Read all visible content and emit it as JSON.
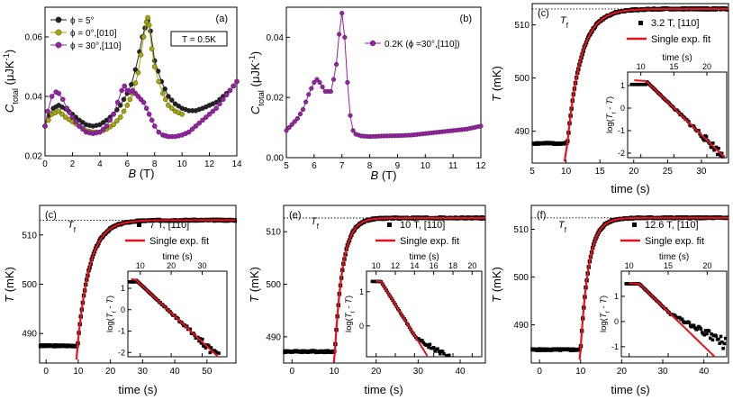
{
  "chart_data": [
    {
      "panel": "(a)",
      "type": "line",
      "xlabel": "B (T)",
      "ylabel": "C_total (μJK⁻¹)",
      "xlim": [
        0,
        14
      ],
      "ylim": [
        0.02,
        0.07
      ],
      "xticks": [
        0,
        2,
        4,
        6,
        8,
        10,
        12,
        14
      ],
      "yticks": [
        0.02,
        0.04,
        0.06
      ],
      "ytick_labels": [
        "0.02",
        "0.04",
        "0.06"
      ],
      "annotation": "T = 0.5K",
      "legend_position": "top-left",
      "series": [
        {
          "name": "ϕ = 5°",
          "color": "#222222",
          "x": [
            0.0,
            0.3,
            0.6,
            1.0,
            1.5,
            2.0,
            2.5,
            3.0,
            3.5,
            4.0,
            4.5,
            5.0,
            5.5,
            6.0,
            6.3,
            6.6,
            6.9,
            7.1,
            7.3,
            7.5,
            7.7,
            8.0,
            8.5,
            9.0,
            9.5,
            10.0,
            10.5,
            11.0,
            11.5,
            12.0,
            12.5,
            13.0,
            13.5,
            14.0
          ],
          "y": [
            0.03,
            0.0335,
            0.036,
            0.037,
            0.0358,
            0.034,
            0.032,
            0.0305,
            0.03,
            0.0305,
            0.032,
            0.034,
            0.037,
            0.041,
            0.044,
            0.049,
            0.055,
            0.06,
            0.063,
            0.0655,
            0.062,
            0.052,
            0.045,
            0.04,
            0.0375,
            0.036,
            0.0352,
            0.0352,
            0.036,
            0.037,
            0.038,
            0.04,
            0.042,
            0.045
          ]
        },
        {
          "name": "ϕ = 0°,[010]",
          "color": "#a8a800",
          "x": [
            0.0,
            0.5,
            1.0,
            1.5,
            2.0,
            2.5,
            3.0,
            3.5,
            4.0,
            4.5,
            5.0,
            5.5,
            6.0,
            6.4,
            6.8,
            7.0,
            7.2,
            7.4,
            7.5,
            7.6,
            7.8,
            8.0,
            8.3,
            8.6,
            9.0,
            9.5,
            10.0
          ],
          "y": [
            0.03,
            0.034,
            0.035,
            0.033,
            0.0315,
            0.03,
            0.0285,
            0.028,
            0.028,
            0.029,
            0.0305,
            0.033,
            0.037,
            0.041,
            0.048,
            0.054,
            0.06,
            0.065,
            0.0665,
            0.064,
            0.056,
            0.05,
            0.045,
            0.041,
            0.037,
            0.035,
            0.034
          ]
        },
        {
          "name": "ϕ = 30°,[110]",
          "color": "#9b1fa8",
          "x": [
            0.0,
            0.2,
            0.5,
            0.8,
            1.0,
            1.3,
            1.6,
            2.0,
            2.5,
            3.0,
            3.5,
            4.0,
            4.5,
            5.0,
            5.3,
            5.6,
            5.8,
            6.0,
            6.2,
            6.4,
            6.6,
            6.8,
            7.0,
            7.2,
            7.4,
            7.6,
            7.8,
            8.0,
            8.3,
            8.6,
            9.0,
            9.5,
            10.0,
            10.5,
            11.0,
            11.5,
            12.0,
            12.5,
            13.0,
            13.5,
            14.0
          ],
          "y": [
            0.03,
            0.035,
            0.04,
            0.0415,
            0.041,
            0.039,
            0.036,
            0.033,
            0.03,
            0.028,
            0.0275,
            0.028,
            0.03,
            0.034,
            0.038,
            0.042,
            0.0435,
            0.042,
            0.0415,
            0.042,
            0.041,
            0.04,
            0.039,
            0.038,
            0.036,
            0.034,
            0.032,
            0.03,
            0.028,
            0.027,
            0.0265,
            0.0265,
            0.027,
            0.028,
            0.03,
            0.032,
            0.034,
            0.036,
            0.039,
            0.042,
            0.045
          ]
        }
      ]
    },
    {
      "panel": "(b)",
      "type": "line",
      "xlabel": "B (T)",
      "ylabel": "C_total (μJK⁻¹)",
      "xlim": [
        5,
        12
      ],
      "ylim": [
        0.0,
        0.05
      ],
      "xticks": [
        5,
        6,
        7,
        8,
        9,
        10,
        11,
        12
      ],
      "yticks": [
        0.0,
        0.02,
        0.04
      ],
      "ytick_labels": [
        "0.00",
        "0.02",
        "0.04"
      ],
      "legend_position": "top-right",
      "series": [
        {
          "name": "0.2K (ϕ =30°,[110])",
          "color": "#9b1fa8",
          "x": [
            5.0,
            5.2,
            5.4,
            5.6,
            5.8,
            6.0,
            6.1,
            6.2,
            6.4,
            6.6,
            6.7,
            6.8,
            6.9,
            7.0,
            7.1,
            7.2,
            7.3,
            7.4,
            7.5,
            7.7,
            8.0,
            8.5,
            9.0,
            9.5,
            10.0,
            10.5,
            11.0,
            11.5,
            12.0
          ],
          "y": [
            0.009,
            0.011,
            0.013,
            0.016,
            0.021,
            0.025,
            0.026,
            0.025,
            0.022,
            0.022,
            0.026,
            0.031,
            0.041,
            0.048,
            0.04,
            0.025,
            0.014,
            0.009,
            0.0078,
            0.0072,
            0.007,
            0.0072,
            0.0073,
            0.0075,
            0.008,
            0.0085,
            0.009,
            0.0095,
            0.0105
          ]
        }
      ]
    },
    {
      "panel": "(c)",
      "type": "scatter+line",
      "xlabel": "time (s)",
      "ylabel": "T (mK)",
      "xlim": [
        5,
        34
      ],
      "ylim": [
        484,
        514
      ],
      "xticks": [
        5,
        10,
        15,
        20,
        25,
        30
      ],
      "yticks": [
        490,
        500,
        510
      ],
      "tf_label": "T_f",
      "T0": 487.7,
      "Tf": 513.0,
      "t0": 10.2,
      "tau": 2.0,
      "data_name": "3.2 T, [110]",
      "fit_name": "Single exp. fit",
      "inset": {
        "xlabel": "time (s)",
        "ylabel": "log(T_f - T)",
        "xlim": [
          8,
          23
        ],
        "ylim": [
          -2.2,
          1.6
        ],
        "xticks": [
          10,
          15,
          20
        ],
        "yticks": [
          -2,
          -1,
          0,
          1
        ],
        "fit_start": 1.2,
        "fit_slope": -0.285,
        "data_plateau": 1.05,
        "plateau_end": 10.8
      }
    },
    {
      "panel": "(c)",
      "type": "scatter+line",
      "xlabel": "time (s)",
      "ylabel": "T (mK)",
      "xlim": [
        -2,
        59
      ],
      "ylim": [
        484,
        516
      ],
      "xticks": [
        0,
        10,
        20,
        30,
        40,
        50
      ],
      "yticks": [
        490,
        500,
        510
      ],
      "tf_label": "T_f",
      "T0": 487.5,
      "Tf": 513.0,
      "t0": 9.8,
      "tau": 3.8,
      "data_name": "7 T, [110]",
      "fit_name": "Single exp. fit",
      "inset": {
        "xlabel": "time (s)",
        "ylabel": "log(T_f - T)",
        "xlim": [
          6,
          38
        ],
        "ylim": [
          -2.2,
          1.8
        ],
        "xticks": [
          10,
          20,
          30
        ],
        "yticks": [
          -2,
          -1,
          0,
          1
        ],
        "fit_start": 1.4,
        "fit_slope": -0.135,
        "data_plateau": 1.3,
        "plateau_end": 8.5
      }
    },
    {
      "panel": "(e)",
      "type": "scatter+line",
      "xlabel": "time (s)",
      "ylabel": "T (mK)",
      "xlim": [
        -2,
        46
      ],
      "ylim": [
        485,
        515
      ],
      "xticks": [
        0,
        10,
        20,
        30,
        40
      ],
      "yticks": [
        490,
        500,
        510
      ],
      "tf_label": "T_f",
      "T0": 487.2,
      "Tf": 512.6,
      "t0": 10.2,
      "tau": 1.9,
      "data_name": "10 T, [110]",
      "fit_name": "Single exp. fit",
      "inset": {
        "xlabel": "time (s)",
        "ylabel": "log(T_f - T)",
        "xlim": [
          9,
          21
        ],
        "ylim": [
          -0.9,
          1.6
        ],
        "xticks": [
          10,
          12,
          14,
          16,
          18,
          20
        ],
        "yticks": [
          0,
          1
        ],
        "fit_start": 1.3,
        "fit_slope": -0.45,
        "data_plateau": 1.3,
        "plateau_end": 10.5,
        "tail_slope": -0.17
      }
    },
    {
      "panel": "(f)",
      "type": "scatter+line",
      "xlabel": "time (s)",
      "ylabel": "T (mK)",
      "xlim": [
        -2,
        46
      ],
      "ylim": [
        482,
        515
      ],
      "xticks": [
        0,
        10,
        20,
        30,
        40
      ],
      "yticks": [
        490,
        500,
        510
      ],
      "tf_label": "T_f",
      "T0": 484.8,
      "Tf": 512.4,
      "t0": 10.0,
      "tau": 2.0,
      "data_name": "12.6 T, [110]",
      "fit_name": "Single exp. fit",
      "inset": {
        "xlabel": "time (s)",
        "ylabel": "log(T_f - T)",
        "xlim": [
          9,
          22.5
        ],
        "ylim": [
          -1.4,
          2.0
        ],
        "xticks": [
          10,
          15,
          20
        ],
        "yticks": [
          -1,
          0,
          1
        ],
        "fit_start": 1.5,
        "fit_slope": -0.3,
        "data_plateau": 1.5,
        "plateau_end": 11.3,
        "tail_slope": -0.17
      }
    }
  ]
}
